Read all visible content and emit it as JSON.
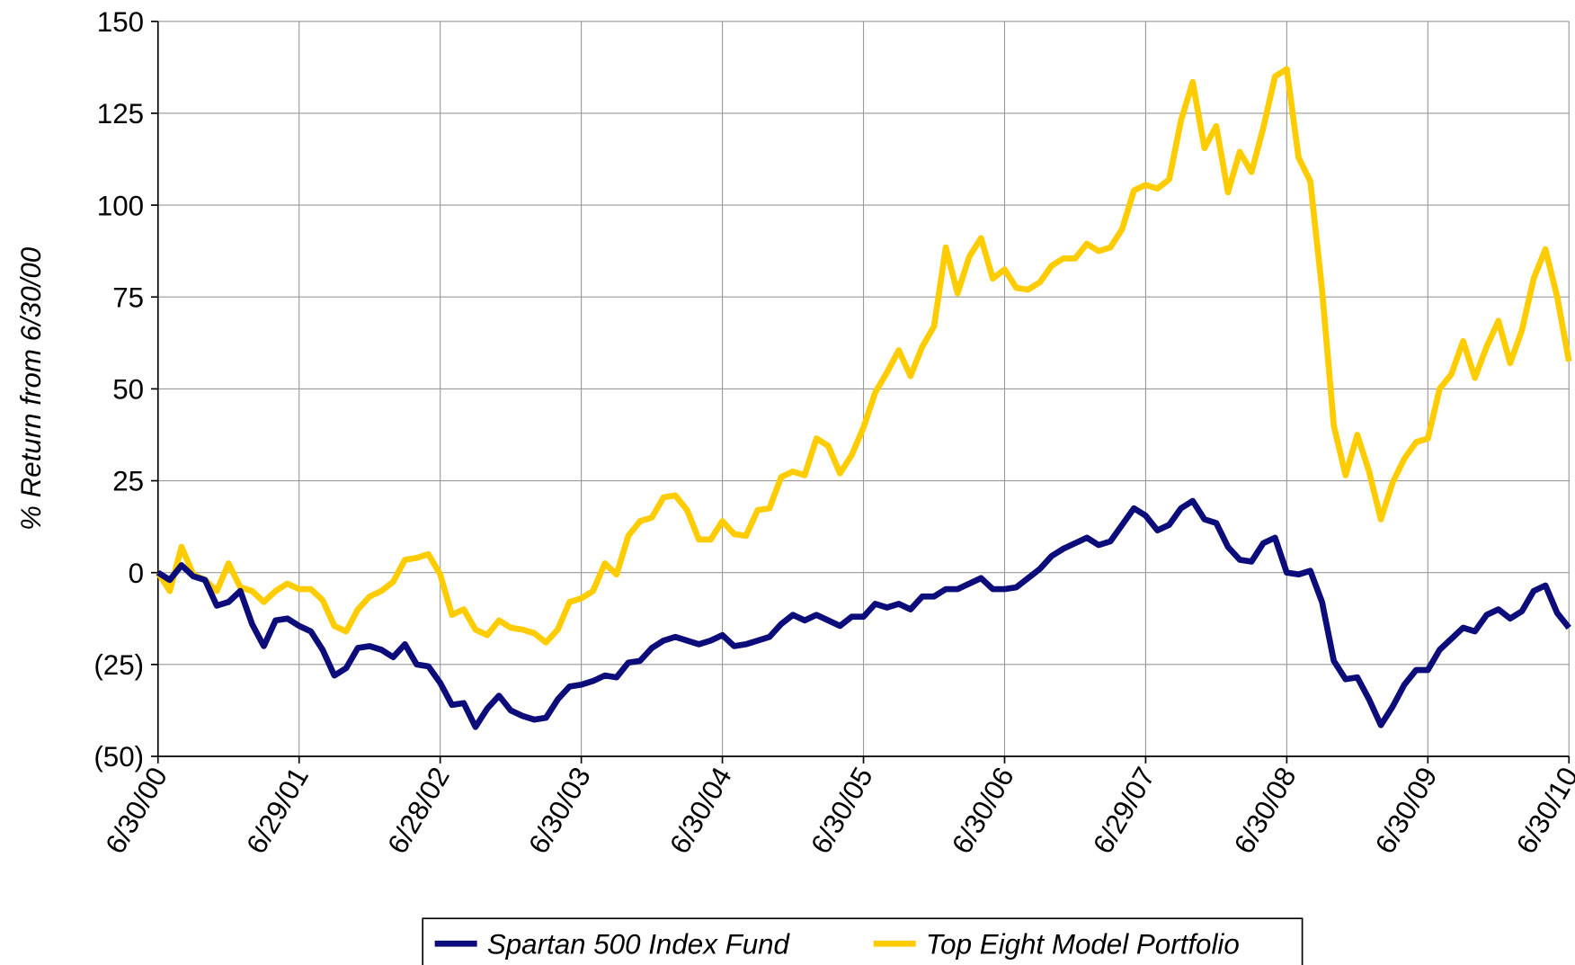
{
  "chart_data": {
    "type": "line",
    "y_label": "% Return from 6/30/00",
    "categories": [
      "6/30/00",
      null,
      null,
      null,
      null,
      null,
      null,
      null,
      null,
      null,
      null,
      null,
      "6/29/01",
      null,
      null,
      null,
      null,
      null,
      null,
      null,
      null,
      null,
      null,
      null,
      "6/28/02",
      null,
      null,
      null,
      null,
      null,
      null,
      null,
      null,
      null,
      null,
      null,
      "6/30/03",
      null,
      null,
      null,
      null,
      null,
      null,
      null,
      null,
      null,
      null,
      null,
      "6/30/04",
      null,
      null,
      null,
      null,
      null,
      null,
      null,
      null,
      null,
      null,
      null,
      "6/30/05",
      null,
      null,
      null,
      null,
      null,
      null,
      null,
      null,
      null,
      null,
      null,
      "6/30/06",
      null,
      null,
      null,
      null,
      null,
      null,
      null,
      null,
      null,
      null,
      null,
      "6/29/07",
      null,
      null,
      null,
      null,
      null,
      null,
      null,
      null,
      null,
      null,
      null,
      "6/30/08",
      null,
      null,
      null,
      null,
      null,
      null,
      null,
      null,
      null,
      null,
      null,
      "6/30/09",
      null,
      null,
      null,
      null,
      null,
      null,
      null,
      null,
      null,
      null,
      null,
      "6/30/10"
    ],
    "series": [
      {
        "name": "Spartan 500 Index Fund",
        "color": "#0c0c7a",
        "values": [
          0,
          -2,
          2,
          -1,
          -2,
          -9,
          -8,
          -5,
          -14,
          -20,
          -13,
          -12.5,
          -14.5,
          -16,
          -21,
          -28,
          -26,
          -20.5,
          -20,
          -21,
          -23,
          -19.5,
          -25,
          -25.5,
          -30,
          -36,
          -35.5,
          -42,
          -37,
          -33.5,
          -37.5,
          -39,
          -40,
          -39.5,
          -34.5,
          -31,
          -30.5,
          -29.5,
          -28,
          -28.5,
          -24.5,
          -24,
          -20.5,
          -18.5,
          -17.5,
          -18.5,
          -19.5,
          -18.5,
          -17,
          -20,
          -19.5,
          -18.5,
          -17.5,
          -14,
          -11.5,
          -13,
          -11.5,
          -13,
          -14.5,
          -12,
          -12,
          -8.5,
          -9.5,
          -8.5,
          -10,
          -6.5,
          -6.5,
          -4.5,
          -4.5,
          -3,
          -1.5,
          -4.5,
          -4.5,
          -4,
          -1.5,
          1,
          4.5,
          6.5,
          8,
          9.5,
          7.5,
          8.5,
          13,
          17.5,
          15.5,
          11.5,
          13,
          17.5,
          19.5,
          14.5,
          13.5,
          7,
          3.5,
          3,
          8,
          9.5,
          0,
          -0.5,
          0.5,
          -8,
          -24,
          -29,
          -28.5,
          -34.5,
          -41.5,
          -36.5,
          -30.5,
          -26.5,
          -26.5,
          -21,
          -18,
          -15,
          -16,
          -11.5,
          -10,
          -12.5,
          -10.5,
          -5,
          -3.5,
          -11,
          -15
        ]
      },
      {
        "name": "Top Eight Model Portfolio",
        "color": "#ffcc00",
        "values": [
          0,
          -5,
          7,
          -0.5,
          -2,
          -5,
          2.5,
          -4,
          -5,
          -8,
          -5,
          -3,
          -4.5,
          -4.5,
          -7.5,
          -14.5,
          -16,
          -10,
          -6.5,
          -5,
          -2.5,
          3.5,
          4,
          5,
          -0.5,
          -11.5,
          -10,
          -15.5,
          -17,
          -13,
          -15,
          -15.5,
          -16.5,
          -19,
          -15.5,
          -8,
          -7,
          -5,
          2.5,
          -0.5,
          10,
          14,
          15,
          20.5,
          21,
          17,
          9,
          9,
          14,
          10.5,
          10,
          17,
          17.5,
          26,
          27.5,
          26.5,
          36.5,
          34.5,
          27,
          32,
          39.5,
          49,
          54.5,
          60.5,
          53.5,
          61.5,
          67,
          88.5,
          76,
          86,
          91,
          80,
          82.5,
          77.5,
          77,
          79,
          83.5,
          85.5,
          85.5,
          89.5,
          87.5,
          88.5,
          93.5,
          104,
          105.5,
          104.5,
          107,
          123,
          133.5,
          115.5,
          121.5,
          103.5,
          114.5,
          109,
          121,
          135,
          137,
          113,
          106.5,
          77,
          40,
          26.5,
          37.5,
          27.5,
          14.5,
          24.5,
          31,
          35.5,
          36.5,
          50,
          54,
          63,
          53,
          61.5,
          68.5,
          57,
          66,
          80,
          88,
          75,
          57.5
        ]
      }
    ],
    "ylim": [
      -50,
      150
    ],
    "yticks": [
      {
        "value": -50,
        "label": "(50)"
      },
      {
        "value": -25,
        "label": "(25)"
      },
      0,
      25,
      50,
      75,
      100,
      125,
      150
    ],
    "negative_label_color": "#ff0000",
    "grid": true
  }
}
